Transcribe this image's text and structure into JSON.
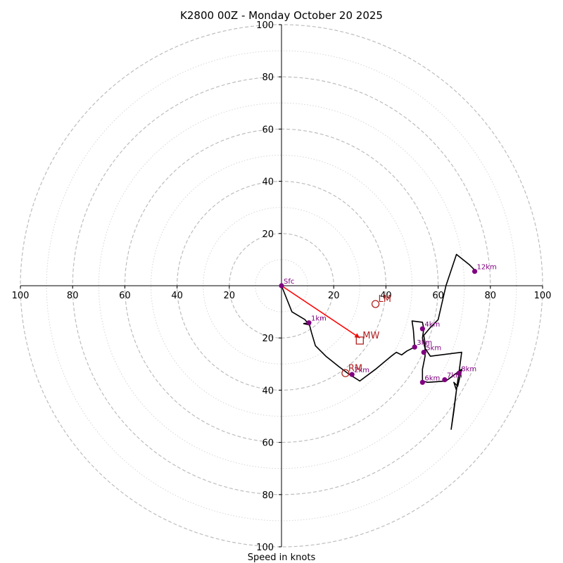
{
  "chart_data": {
    "type": "hodograph",
    "title": "K2800 00Z - Monday October 20 2025",
    "xlabel": "Speed in knots",
    "xlim": [
      -100,
      100
    ],
    "ylim": [
      -100,
      100
    ],
    "units": "knots",
    "rings_major": [
      20,
      40,
      60,
      80,
      100
    ],
    "rings_minor": [
      10,
      30,
      50,
      70,
      90
    ],
    "x_ticks": [
      {
        "value": -100,
        "label": "100"
      },
      {
        "value": -80,
        "label": "80"
      },
      {
        "value": -60,
        "label": "60"
      },
      {
        "value": -40,
        "label": "40"
      },
      {
        "value": -20,
        "label": "20"
      },
      {
        "value": 20,
        "label": "20"
      },
      {
        "value": 40,
        "label": "40"
      },
      {
        "value": 60,
        "label": "60"
      },
      {
        "value": 80,
        "label": "80"
      },
      {
        "value": 100,
        "label": "100"
      }
    ],
    "y_ticks": [
      {
        "value": 100,
        "label": "100"
      },
      {
        "value": 80,
        "label": "80"
      },
      {
        "value": 60,
        "label": "60"
      },
      {
        "value": 40,
        "label": "40"
      },
      {
        "value": 20,
        "label": "20"
      },
      {
        "value": -20,
        "label": "20"
      },
      {
        "value": -40,
        "label": "40"
      },
      {
        "value": -60,
        "label": "60"
      },
      {
        "value": -80,
        "label": "80"
      },
      {
        "value": -100,
        "label": "100"
      }
    ],
    "trace": {
      "color": "#000000",
      "points": [
        [
          0,
          0
        ],
        [
          4,
          -10
        ],
        [
          9,
          -13
        ],
        [
          10.5,
          -15
        ],
        [
          8.5,
          -14.5
        ],
        [
          10.5,
          -14.2
        ],
        [
          11.5,
          -18
        ],
        [
          13,
          -23
        ],
        [
          17,
          -27
        ],
        [
          22,
          -31
        ],
        [
          26,
          -34
        ],
        [
          30,
          -36.5
        ],
        [
          36,
          -32
        ],
        [
          42,
          -27
        ],
        [
          44,
          -25.5
        ],
        [
          46,
          -26.5
        ],
        [
          48,
          -25
        ],
        [
          51,
          -23.5
        ],
        [
          50.5,
          -17
        ],
        [
          50,
          -13.5
        ],
        [
          54,
          -14
        ],
        [
          54.5,
          -16.5
        ],
        [
          54,
          -20
        ],
        [
          55,
          -24
        ],
        [
          57,
          -27
        ],
        [
          69,
          -25.5
        ],
        [
          68,
          -33
        ],
        [
          67,
          -40
        ],
        [
          66,
          -48
        ],
        [
          65,
          -55
        ],
        [
          67,
          -40
        ],
        [
          66,
          -37
        ],
        [
          67.5,
          -38.5
        ],
        [
          69,
          -32
        ],
        [
          63,
          -36.5
        ],
        [
          56,
          -37
        ],
        [
          54,
          -36.5
        ],
        [
          54,
          -32
        ],
        [
          55,
          -27
        ],
        [
          55,
          -22
        ],
        [
          54.5,
          -19
        ],
        [
          57,
          -16
        ],
        [
          60,
          -13
        ],
        [
          63,
          0
        ],
        [
          67,
          12
        ],
        [
          72,
          8
        ],
        [
          74,
          6
        ]
      ]
    },
    "height_markers": [
      {
        "label": "Sfc",
        "u": 0,
        "v": 0
      },
      {
        "label": "1km",
        "u": 10.5,
        "v": -14.2
      },
      {
        "label": "2km",
        "u": 27,
        "v": -34
      },
      {
        "label": "3km",
        "u": 51,
        "v": -23.5
      },
      {
        "label": "4km",
        "u": 54,
        "v": -16.5
      },
      {
        "label": "5km",
        "u": 54.5,
        "v": -25.5
      },
      {
        "label": "6km",
        "u": 54,
        "v": -37
      },
      {
        "label": "7km",
        "u": 62.5,
        "v": -36
      },
      {
        "label": "8km",
        "u": 68,
        "v": -33.5
      },
      {
        "label": "12km",
        "u": 74,
        "v": 5.5
      }
    ],
    "storm_motions": [
      {
        "label": "LM",
        "u": 36,
        "v": -7,
        "marker": "circle"
      },
      {
        "label": "MW",
        "u": 30,
        "v": -21,
        "marker": "square"
      },
      {
        "label": "RM",
        "u": 24.5,
        "v": -33.5,
        "marker": "circle"
      }
    ],
    "mean_wind_vector": {
      "from": [
        0,
        0
      ],
      "to": [
        30,
        -20
      ]
    },
    "colors": {
      "trace": "#000000",
      "height_markers": "#800080",
      "storm_motion": "#b22222",
      "mean_wind_vector": "#ff0000",
      "rings": "#bdbdbd"
    }
  }
}
